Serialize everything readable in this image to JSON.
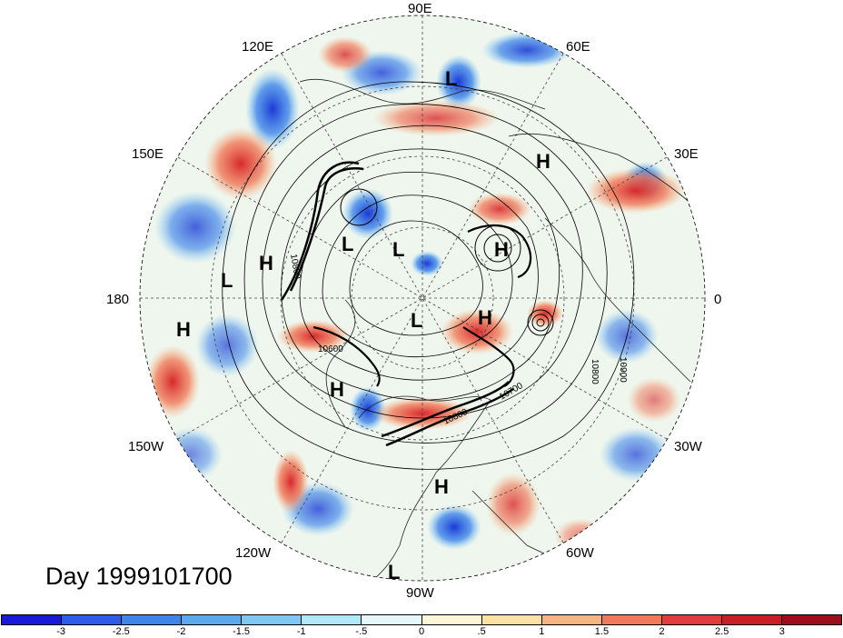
{
  "figure": {
    "lon_labels": [
      "90E",
      "60E",
      "30E",
      "0",
      "30W",
      "60W",
      "90W",
      "120W",
      "150W",
      "180",
      "150E",
      "120E"
    ],
    "pressure_centers": [
      "L",
      "H",
      "L",
      "L",
      "H",
      "L",
      "H",
      "H",
      "L",
      "H",
      "H",
      "H",
      "L"
    ],
    "contour_labels": [
      "10800",
      "10600",
      "10700",
      "10800",
      "10800",
      "10900"
    ],
    "day_label": "Day 1999101700",
    "colorbar": {
      "ticks": [
        "-3",
        "-2.5",
        "-2",
        "-1.5",
        "-1",
        "-.5",
        "0",
        ".5",
        "1",
        "1.5",
        "2",
        "2.5",
        "3"
      ],
      "colors": [
        "#1a1ad6",
        "#2c5de8",
        "#3c86ea",
        "#5aaaf0",
        "#7cc8f6",
        "#aeeafa",
        "#e6f8fc",
        "#fdf6d8",
        "#fbe2a0",
        "#f8b47c",
        "#f07a58",
        "#e03c3c",
        "#c81e28",
        "#9c0e1c"
      ]
    }
  }
}
